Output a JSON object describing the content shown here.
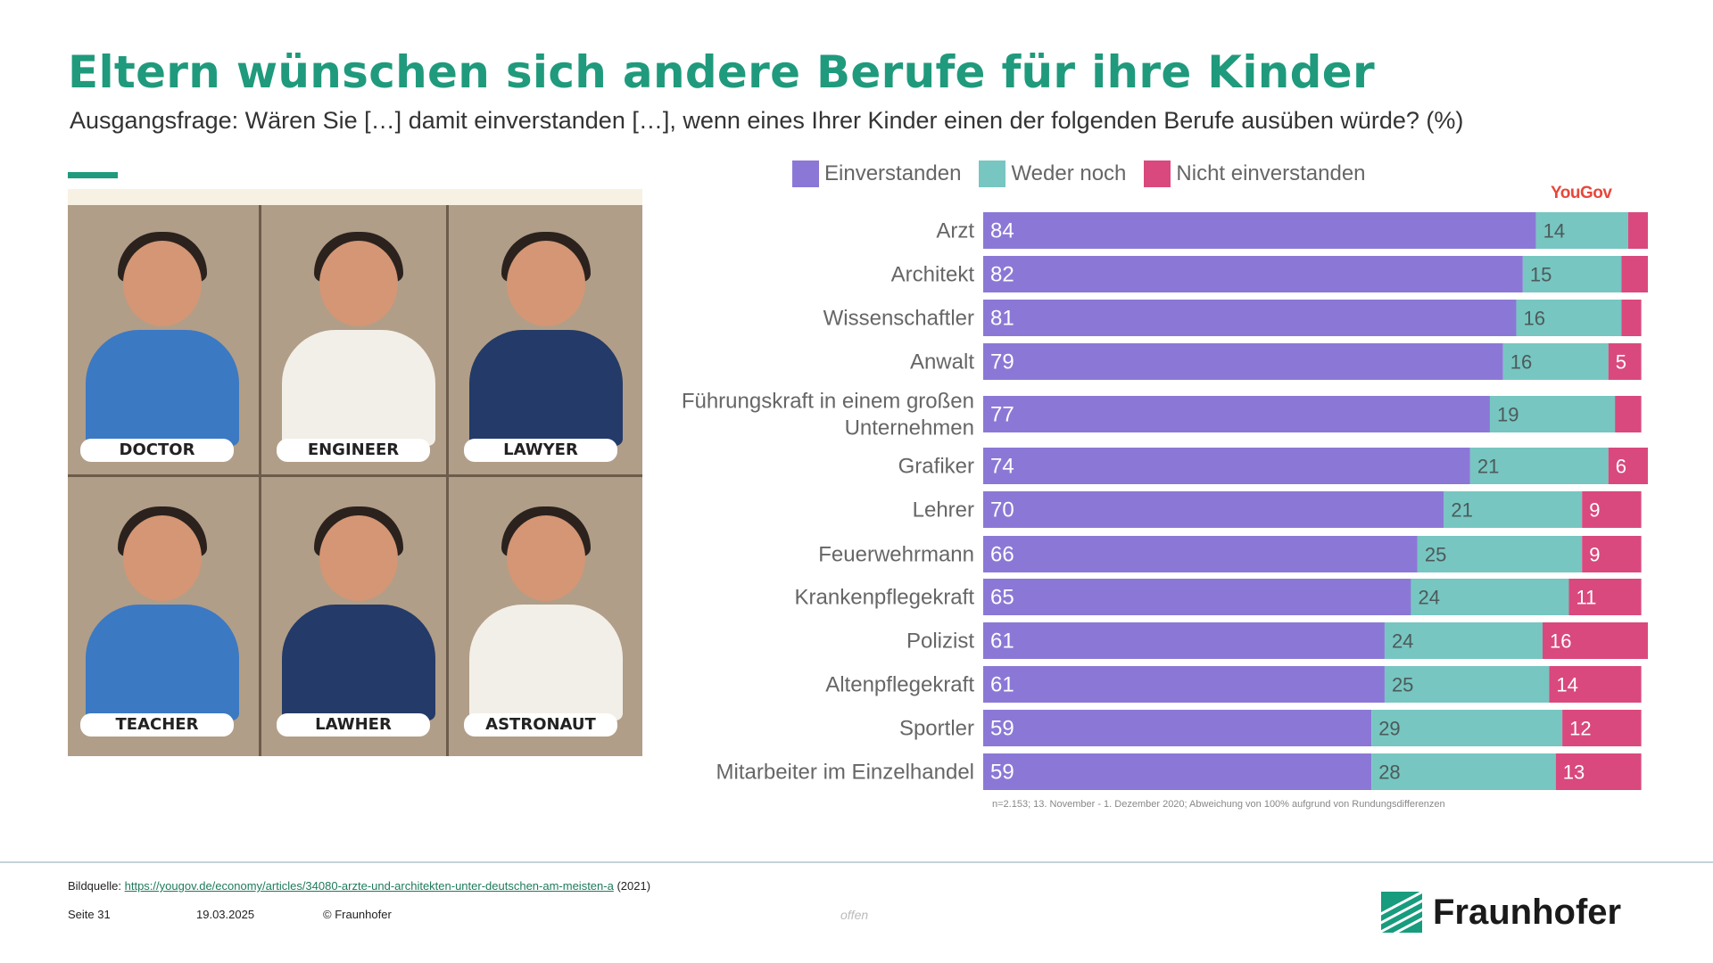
{
  "title": "Eltern wünschen sich andere Berufe für ihre Kinder",
  "subtitle": "Ausgangsfrage: Wären Sie […] damit einverstanden […], wenn eines Ihrer Kinder einen der folgenden Berufe ausüben würde? (%)",
  "illustration": {
    "panels": [
      {
        "label": "DOCTOR",
        "color": "#3b79c3"
      },
      {
        "label": "ENGINEER",
        "color": "#f2efe8"
      },
      {
        "label": "LAWYER",
        "color": "#243a68"
      },
      {
        "label": "TEACHER",
        "color": "#3b79c3"
      },
      {
        "label": "LAWHER",
        "color": "#243a68"
      },
      {
        "label": "ASTRONAUT",
        "color": "#f2efe8"
      }
    ]
  },
  "brand_badge": "YouGov",
  "chart_data": {
    "type": "bar",
    "orientation": "horizontal",
    "stacked": true,
    "legend_position": "top",
    "categories": [
      "Arzt",
      "Architekt",
      "Wissenschaftler",
      "Anwalt",
      "Führungskraft in einem großen Unternehmen",
      "Grafiker",
      "Lehrer",
      "Feuerwehrmann",
      "Krankenpflegekraft",
      "Polizist",
      "Altenpflegekraft",
      "Sportler",
      "Mitarbeiter im Einzelhandel"
    ],
    "category_lines": [
      [
        "Arzt"
      ],
      [
        "Architekt"
      ],
      [
        "Wissenschaftler"
      ],
      [
        "Anwalt"
      ],
      [
        "Führungskraft in einem großen",
        "Unternehmen"
      ],
      [
        "Grafiker"
      ],
      [
        "Lehrer"
      ],
      [
        "Feuerwehrmann"
      ],
      [
        "Krankenpflegekraft"
      ],
      [
        "Polizist"
      ],
      [
        "Altenpflegekraft"
      ],
      [
        "Sportler"
      ],
      [
        "Mitarbeiter im Einzelhandel"
      ]
    ],
    "series": [
      {
        "name": "Einverstanden",
        "color": "#8b78d6",
        "label_color": "#ffffff",
        "values": [
          84,
          82,
          81,
          79,
          77,
          74,
          70,
          66,
          65,
          61,
          61,
          59,
          59
        ]
      },
      {
        "name": "Weder noch",
        "color": "#77c6c1",
        "label_color": "#4d5a5a",
        "values": [
          14,
          15,
          16,
          16,
          19,
          21,
          21,
          25,
          24,
          24,
          25,
          29,
          28
        ]
      },
      {
        "name": "Nicht einverstanden",
        "color": "#d9497d",
        "label_color": "#ffffff",
        "values": [
          3,
          4,
          3,
          5,
          4,
          6,
          9,
          9,
          11,
          16,
          14,
          12,
          13
        ]
      }
    ],
    "data_labels": [
      [
        "84",
        "14",
        ""
      ],
      [
        "82",
        "15",
        ""
      ],
      [
        "81",
        "16",
        ""
      ],
      [
        "79",
        "16",
        "5"
      ],
      [
        "77",
        "19",
        ""
      ],
      [
        "74",
        "21",
        "6"
      ],
      [
        "70",
        "21",
        "9"
      ],
      [
        "66",
        "25",
        "9"
      ],
      [
        "65",
        "24",
        "11"
      ],
      [
        "61",
        "24",
        "16"
      ],
      [
        "61",
        "25",
        "14"
      ],
      [
        "59",
        "29",
        "12"
      ],
      [
        "59",
        "28",
        "13"
      ]
    ],
    "xlim": [
      0,
      100
    ]
  },
  "footnote": "n=2.153; 13. November - 1. Dezember 2020; Abweichung von 100% aufgrund von Rundungsdifferenzen",
  "footer": {
    "source_label": "Bildquelle:",
    "source_url": "https://yougov.de/economy/articles/34080-arzte-und-architekten-unter-deutschen-am-meisten-a",
    "source_year": "(2021)",
    "page": "Seite 31",
    "date": "19.03.2025",
    "copyright": "© Fraunhofer",
    "classification": "offen",
    "logo_text": "Fraunhofer"
  }
}
